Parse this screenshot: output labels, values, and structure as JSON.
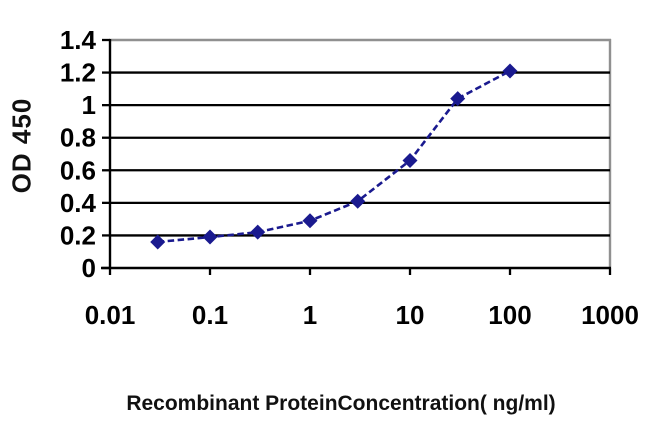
{
  "chart_data": {
    "type": "line",
    "x": [
      0.03,
      0.1,
      0.3,
      1,
      3,
      10,
      30,
      100
    ],
    "values": [
      0.16,
      0.19,
      0.22,
      0.29,
      0.41,
      0.66,
      1.04,
      1.21
    ],
    "title": "",
    "xlabel": "Recombinant ProteinConcentration( ng/ml)",
    "ylabel": "OD 450",
    "x_scale": "log",
    "xlim": [
      0.01,
      1000
    ],
    "ylim": [
      0,
      1.4
    ],
    "x_ticks": [
      "0.01",
      "0.1",
      "1",
      "10",
      "100",
      "1000"
    ],
    "y_ticks": [
      "0",
      "0.2",
      "0.4",
      "0.6",
      "0.8",
      "1",
      "1.2",
      "1.4"
    ],
    "grid": "horizontal",
    "legend": "none",
    "line_color": "#1a1a8f",
    "marker": "diamond",
    "line_style": "dashed",
    "grid_color": "#000000",
    "border_color": "#909090",
    "background": "#ffffff"
  }
}
